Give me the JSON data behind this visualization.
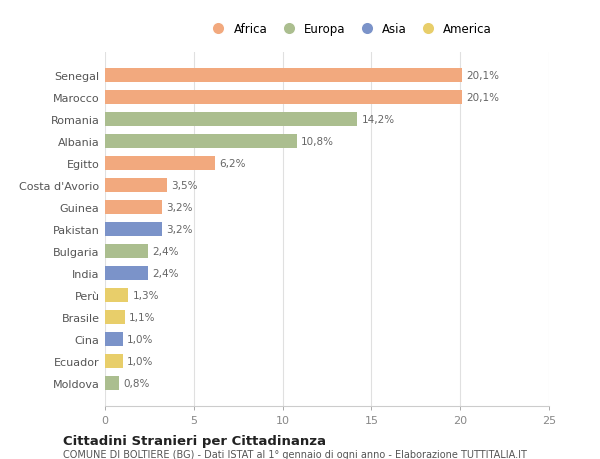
{
  "categories": [
    "Senegal",
    "Marocco",
    "Romania",
    "Albania",
    "Egitto",
    "Costa d'Avorio",
    "Guinea",
    "Pakistan",
    "Bulgaria",
    "India",
    "Perù",
    "Brasile",
    "Cina",
    "Ecuador",
    "Moldova"
  ],
  "values": [
    20.1,
    20.1,
    14.2,
    10.8,
    6.2,
    3.5,
    3.2,
    3.2,
    2.4,
    2.4,
    1.3,
    1.1,
    1.0,
    1.0,
    0.8
  ],
  "labels": [
    "20,1%",
    "20,1%",
    "14,2%",
    "10,8%",
    "6,2%",
    "3,5%",
    "3,2%",
    "3,2%",
    "2,4%",
    "2,4%",
    "1,3%",
    "1,1%",
    "1,0%",
    "1,0%",
    "0,8%"
  ],
  "continents": [
    "Africa",
    "Africa",
    "Europa",
    "Europa",
    "Africa",
    "Africa",
    "Africa",
    "Asia",
    "Europa",
    "Asia",
    "America",
    "America",
    "Asia",
    "America",
    "Europa"
  ],
  "colors": {
    "Africa": "#F2A97E",
    "Europa": "#ABBE8F",
    "Asia": "#7B93C9",
    "America": "#E8CE6A"
  },
  "legend_order": [
    "Africa",
    "Europa",
    "Asia",
    "America"
  ],
  "title": "Cittadini Stranieri per Cittadinanza",
  "subtitle": "COMUNE DI BOLTIERE (BG) - Dati ISTAT al 1° gennaio di ogni anno - Elaborazione TUTTITALIA.IT",
  "xlim": [
    0,
    25
  ],
  "xticks": [
    0,
    5,
    10,
    15,
    20,
    25
  ],
  "bg_color": "#ffffff",
  "grid_color": "#e0e0e0",
  "bar_height": 0.65
}
